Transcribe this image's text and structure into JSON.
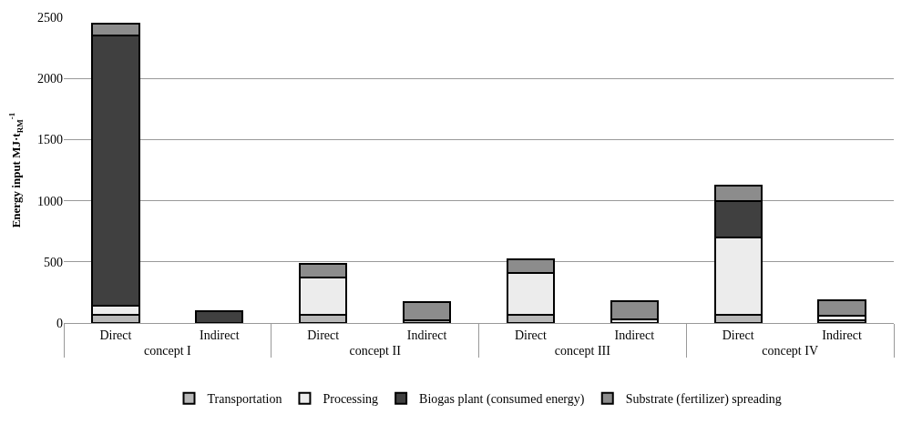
{
  "chart_data": {
    "type": "bar",
    "stacked": true,
    "ylabel": "Energy input MJ·t$_{RM}$$^{-1}$",
    "categories": [
      "Direct",
      "Indirect",
      "Direct",
      "Indirect",
      "Direct",
      "Indirect",
      "Direct",
      "Indirect"
    ],
    "annotations": [
      "concept I",
      "concept II",
      "concept III",
      "concept IV"
    ],
    "series": [
      {
        "name": "Transportation",
        "color": "#b8b8b8",
        "values": [
          70,
          null,
          70,
          20,
          70,
          null,
          70,
          20
        ]
      },
      {
        "name": "Processing",
        "color": "#ececec",
        "values": [
          70,
          null,
          300,
          null,
          340,
          30,
          630,
          40
        ]
      },
      {
        "name": "Biogas plant (consumed energy)",
        "color": "#404040",
        "values": [
          2210,
          100,
          null,
          null,
          null,
          null,
          300,
          null
        ]
      },
      {
        "name": "Substrate (fertilizer) spreading",
        "color": "#8c8c8c",
        "values": [
          100,
          null,
          110,
          150,
          110,
          150,
          120,
          125
        ]
      }
    ],
    "ylim": [
      0,
      2500
    ],
    "yticks": [
      0,
      500,
      1000,
      1500,
      2000,
      2500
    ],
    "grid": "y",
    "legend": "bottom"
  }
}
